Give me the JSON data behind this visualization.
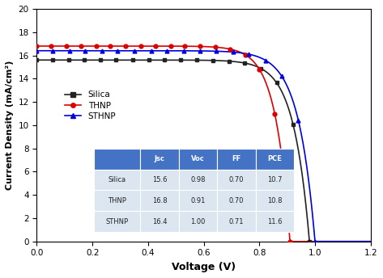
{
  "title": "",
  "xlabel": "Voltage (V)",
  "ylabel": "Current Density (mA/cm²)",
  "xlim": [
    0,
    1.2
  ],
  "ylim": [
    0,
    20
  ],
  "xticks": [
    0.0,
    0.2,
    0.4,
    0.6,
    0.8,
    1.0,
    1.2
  ],
  "yticks": [
    0,
    2,
    4,
    6,
    8,
    10,
    12,
    14,
    16,
    18,
    20
  ],
  "series": [
    {
      "label": "Silica",
      "color": "#222222",
      "marker": "s",
      "Jsc": 15.6,
      "Voc": 0.98,
      "FF": 0.7,
      "PCE": 10.7,
      "n_ideal": 2.2
    },
    {
      "label": "THNP",
      "color": "#dd0000",
      "marker": "o",
      "Jsc": 16.8,
      "Voc": 0.91,
      "FF": 0.7,
      "PCE": 10.8,
      "n_ideal": 2.0
    },
    {
      "label": "STHNP",
      "color": "#0000dd",
      "marker": "^",
      "Jsc": 16.4,
      "Voc": 1.0,
      "FF": 0.71,
      "PCE": 11.6,
      "n_ideal": 2.3
    }
  ],
  "table_data": [
    [
      "",
      "Jsc",
      "Voc",
      "FF",
      "PCE"
    ],
    [
      "Silica",
      "15.6",
      "0.98",
      "0.70",
      "10.7"
    ],
    [
      "THNP",
      "16.8",
      "0.91",
      "0.70",
      "10.8"
    ],
    [
      "STHNP",
      "16.4",
      "1.00",
      "0.71",
      "11.6"
    ]
  ],
  "table_header_color": "#4472c4",
  "table_row_color": "#dce6f1",
  "background_color": "#ffffff",
  "n_markers": 18,
  "marker_size": 3.5,
  "line_width": 1.2,
  "legend_fontsize": 7.5,
  "axis_label_fontsize": 9,
  "tick_fontsize": 7.5
}
